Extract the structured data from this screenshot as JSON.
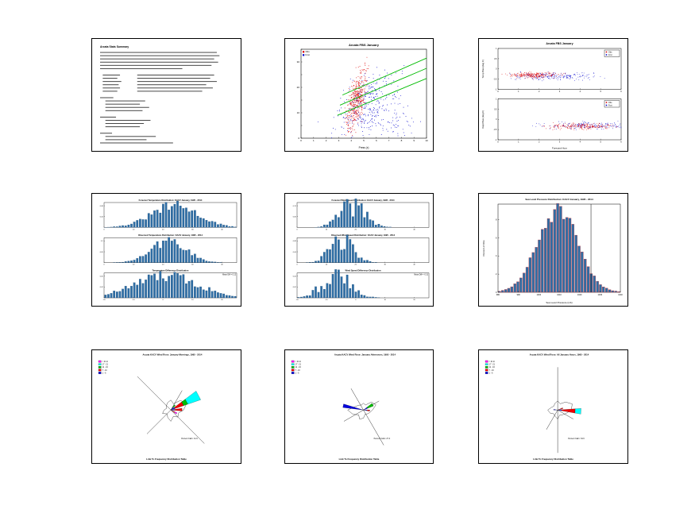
{
  "page": {
    "background": "#ffffff"
  },
  "palette": {
    "bar_fill": "#2e6da4",
    "bar_edge": "#123a5c",
    "diff_bar_edge": "#cc2222",
    "obs_red": "#dd0000",
    "fcst_blue": "#0000cc",
    "ref_green": "#00bb00"
  },
  "chart_data": [
    {
      "type": "text_page",
      "title": "Arcata Stats Summary",
      "lines": [
        [
          [
            0,
            88
          ]
        ],
        [
          [
            0,
            90
          ]
        ],
        [
          [
            0,
            86
          ]
        ],
        [
          [
            0,
            89
          ]
        ],
        [
          [
            0,
            84
          ]
        ],
        [
          [
            0,
            62
          ]
        ],
        [],
        [
          [
            2,
            13
          ],
          [
            28,
            58
          ]
        ],
        [
          [
            2,
            11
          ],
          [
            28,
            55
          ]
        ],
        [
          [
            2,
            14
          ],
          [
            28,
            60
          ]
        ],
        [
          [
            2,
            12
          ],
          [
            28,
            52
          ]
        ],
        [
          [
            2,
            13
          ],
          [
            28,
            57
          ]
        ],
        [
          [
            2,
            11
          ],
          [
            28,
            49
          ]
        ],
        [],
        [
          [
            0,
            10
          ]
        ],
        [
          [
            4,
            30
          ]
        ],
        [
          [
            4,
            26
          ]
        ],
        [
          [
            4,
            33
          ]
        ],
        [
          [
            4,
            28
          ]
        ],
        [],
        [
          [
            0,
            12
          ]
        ],
        [
          [
            4,
            34
          ]
        ],
        [
          [
            4,
            29
          ]
        ],
        [
          [
            4,
            26
          ]
        ],
        [],
        [
          [
            0,
            9
          ]
        ],
        [
          [
            4,
            38
          ]
        ],
        [
          [
            4,
            31
          ]
        ],
        [
          [
            0,
            55
          ]
        ]
      ]
    },
    {
      "type": "scatter",
      "title": "Arcata FBS January",
      "xlabel": "Press (x)",
      "xlim": [
        0,
        10
      ],
      "xtick": 1,
      "ylim": [
        0,
        35
      ],
      "ytick": 5,
      "ylabeltick": 10,
      "legend": {
        "entries": [
          {
            "color": "#dd0000",
            "label": "Obs"
          },
          {
            "color": "#0000cc",
            "label": "Fcst"
          }
        ]
      },
      "clusters": [
        {
          "color": "#0000cc",
          "n": 320,
          "cx": 5.2,
          "cy": 13,
          "sx": 1.25,
          "sy": 5.5,
          "slope": 2.5,
          "seed": 11
        },
        {
          "color": "#0000cc",
          "n": 80,
          "cx": 7.0,
          "cy": 6.5,
          "sx": 1.4,
          "sy": 2.8,
          "slope": 0,
          "seed": 12
        },
        {
          "color": "#dd0000",
          "n": 420,
          "cx": 4.4,
          "cy": 15,
          "sx": 0.38,
          "sy": 4.5,
          "slope": 9,
          "seed": 13
        }
      ],
      "lines": [
        {
          "color": "#00bb00",
          "x1": 2.9,
          "y1": 9,
          "x2": 10,
          "y2": 23.5
        },
        {
          "color": "#00bb00",
          "x1": 3.1,
          "y1": 13,
          "x2": 10,
          "y2": 27.5
        },
        {
          "color": "#00bb00",
          "x1": 3.3,
          "y1": 17,
          "x2": 10,
          "y2": 31.5
        }
      ]
    },
    {
      "type": "scatter2",
      "title": "Arcata FBS January",
      "xlabel": "Forecast Hour",
      "xlim": [
        0,
        6
      ],
      "xtick": 1,
      "subplots": [
        {
          "ylabel": "Temp Bias (deg C)",
          "ylim": [
            -1,
            1
          ],
          "legend": {
            "entries": [
              {
                "color": "#dd0000",
                "label": "Obs"
              },
              {
                "color": "#0000cc",
                "label": "Fcst"
              }
            ]
          },
          "clusters": [
            {
              "color": "#0000cc",
              "n": 220,
              "cx": 2.7,
              "cy": -0.35,
              "sx": 1.0,
              "sy": 0.09,
              "seed": 22
            },
            {
              "color": "#dd0000",
              "n": 240,
              "cx": 1.7,
              "cy": -0.3,
              "sx": 0.55,
              "sy": 0.07,
              "seed": 21
            }
          ]
        },
        {
          "ylabel": "Dwpt Bias (deg C)",
          "ylim": [
            -1,
            1
          ],
          "legend": {
            "entries": [
              {
                "color": "#dd0000",
                "label": "Obs"
              },
              {
                "color": "#0000cc",
                "label": "Fcst"
              }
            ]
          },
          "clusters": [
            {
              "color": "#0000cc",
              "n": 200,
              "cx": 4.5,
              "cy": -0.3,
              "sx": 1.05,
              "sy": 0.09,
              "seed": 23
            },
            {
              "color": "#dd0000",
              "n": 220,
              "cx": 4.1,
              "cy": -0.35,
              "sx": 0.8,
              "sy": 0.07,
              "seed": 24
            }
          ]
        }
      ]
    },
    {
      "type": "hist_stack",
      "subplots": [
        {
          "title": "Forecast Temperature Distribution: KACV January, 1995 - 2014",
          "bins": 46,
          "center": 24,
          "sigma": 8,
          "peak": 0.08,
          "noise": 0.25,
          "seed": 31,
          "xlim": [
            0,
            45
          ],
          "xtick": 10
        },
        {
          "title": "Observed Temperature Distribution: KACV January, 1995 - 2014",
          "bins": 46,
          "center": 22,
          "sigma": 6,
          "peak": 0.1,
          "noise": 0.25,
          "seed": 32,
          "xlim": [
            0,
            45
          ],
          "xtick": 10
        },
        {
          "title": "Temperature Difference Distribution",
          "bins": 46,
          "center": 21,
          "sigma": 11,
          "peak": 0.045,
          "noise": 0.3,
          "seed": 33,
          "xlim": [
            -20,
            25
          ],
          "xtick": 10,
          "note": "Mean Diff = 0.12"
        }
      ]
    },
    {
      "type": "hist_stack",
      "subplots": [
        {
          "title": "Forecast Wind Speed Distribution: KACV January, 1995 - 2014",
          "bins": 46,
          "center": 19,
          "sigma": 4.5,
          "peak": 0.12,
          "noise": 0.5,
          "seed": 41,
          "xlim": [
            0,
            45
          ],
          "xtick": 10
        },
        {
          "title": "Observed Wind Speed Distribution: KACV January, 1995 - 2014",
          "bins": 46,
          "center": 15,
          "sigma": 4,
          "peak": 0.075,
          "noise": 0.5,
          "seed": 42,
          "xlim": [
            0,
            45
          ],
          "xtick": 10
        },
        {
          "title": "Wind Speed Difference Distribution",
          "bins": 46,
          "center": 13,
          "sigma": 5,
          "peak": 0.04,
          "noise": 0.5,
          "seed": 43,
          "xlim": [
            -20,
            25
          ],
          "xtick": 10,
          "note": "Mean Diff = -0.31"
        }
      ]
    },
    {
      "type": "hist",
      "title": "Sea Level Pressure Distribution: KACV January, 1995 - 2014",
      "xlabel": "Sea Level Pressure (mb)",
      "ylabel": "Percent of Obs",
      "bins": 40,
      "center": 19,
      "sigma": 6.5,
      "peak": 9,
      "noise": 0.12,
      "seed": 51,
      "xlim": [
        980,
        1040
      ],
      "xtick": 10,
      "ytick": 2,
      "refline_frac": 0.76
    },
    {
      "type": "windrose",
      "title": "Arcata KACV Wind Rose: January Mornings, 1995 - 2014",
      "legend": [
        {
          "color": "#ff00ff",
          "label": "> 21 kt"
        },
        {
          "color": "#00ffff",
          "label": "17 - 21"
        },
        {
          "color": "#00bb00",
          "label": "11 - 16"
        },
        {
          "color": "#ee0000",
          "label": "7 - 10"
        },
        {
          "color": "#0000dd",
          "label": "1 - 6"
        }
      ],
      "star": [
        0.22,
        0.15,
        0.3,
        0.38,
        0.28,
        0.18,
        0.22,
        0.15,
        0.25,
        0.18,
        0.12,
        0.2,
        0.15,
        0.1,
        0.14,
        0.18
      ],
      "lines": [
        {
          "dir": 135,
          "len": 1.05
        },
        {
          "dir": 315,
          "len": 1.05
        },
        {
          "dir": 225,
          "len": 0.75
        },
        {
          "dir": 30,
          "len": 0.5
        }
      ],
      "petals": [
        {
          "dir": 62,
          "hw": 9,
          "segs": [
            {
              "color": "#0000dd",
              "len": 0.1
            },
            {
              "color": "#ee0000",
              "len": 0.2
            },
            {
              "color": "#00bb00",
              "len": 0.1
            },
            {
              "color": "#00ffff",
              "len": 0.3
            }
          ]
        },
        {
          "dir": 88,
          "hw": 7,
          "segs": [
            {
              "color": "#0000dd",
              "len": 0.08
            },
            {
              "color": "#ee0000",
              "len": 0.17
            }
          ]
        },
        {
          "dir": 40,
          "hw": 6,
          "segs": [
            {
              "color": "#0000dd",
              "len": 0.07
            },
            {
              "color": "#00bb00",
              "len": 0.07
            }
          ]
        },
        {
          "dir": 120,
          "hw": 6,
          "segs": [
            {
              "color": "#ee0000",
              "len": 0.1
            },
            {
              "color": "#ff00ff",
              "len": 0.05
            }
          ]
        }
      ],
      "note": "Percent Calm: 41.9",
      "bottom_label": "Link To Frequency Distribution Table"
    },
    {
      "type": "windrose",
      "title": "Arcata KACV Wind Rose: January Afternoons, 1995 - 2014",
      "legend": [
        {
          "color": "#ff00ff",
          "label": "> 21 kt"
        },
        {
          "color": "#00ffff",
          "label": "17 - 21"
        },
        {
          "color": "#00bb00",
          "label": "11 - 16"
        },
        {
          "color": "#ee0000",
          "label": "7 - 10"
        },
        {
          "color": "#0000dd",
          "label": "1 - 6"
        }
      ],
      "star": [
        0.15,
        0.12,
        0.25,
        0.3,
        0.2,
        0.15,
        0.12,
        0.1,
        0.18,
        0.22,
        0.15,
        0.25,
        0.35,
        0.2,
        0.15,
        0.12
      ],
      "lines": [
        {
          "dir": 150,
          "len": 0.9
        },
        {
          "dir": 330,
          "len": 0.55
        },
        {
          "dir": 240,
          "len": 0.5
        },
        {
          "dir": 60,
          "len": 0.4
        }
      ],
      "petals": [
        {
          "dir": 282,
          "hw": 5,
          "segs": [
            {
              "color": "#0000dd",
              "len": 0.46
            }
          ]
        },
        {
          "dir": 60,
          "hw": 8,
          "segs": [
            {
              "color": "#0000dd",
              "len": 0.1
            },
            {
              "color": "#00bb00",
              "len": 0.14
            }
          ]
        },
        {
          "dir": 95,
          "hw": 6,
          "segs": [
            {
              "color": "#0000dd",
              "len": 0.08
            },
            {
              "color": "#ee0000",
              "len": 0.06
            }
          ]
        }
      ],
      "note": "Percent Calm: 27.4",
      "bottom_label": "Link To Frequency Distribution Table"
    },
    {
      "type": "windrose",
      "title": "Arcata KACV Wind Rose: All January Hours, 1995 - 2014",
      "legend": [
        {
          "color": "#ff00ff",
          "label": "> 21 kt"
        },
        {
          "color": "#00ffff",
          "label": "17 - 21"
        },
        {
          "color": "#00bb00",
          "label": "11 - 16"
        },
        {
          "color": "#ee0000",
          "label": "7 - 10"
        },
        {
          "color": "#0000dd",
          "label": "1 - 6"
        }
      ],
      "star": [
        0.2,
        0.15,
        0.25,
        0.35,
        0.3,
        0.2,
        0.15,
        0.12,
        0.2,
        0.15,
        0.12,
        0.18,
        0.22,
        0.15,
        0.12,
        0.16
      ],
      "lines": [
        {
          "dir": 0,
          "len": 0.95
        },
        {
          "dir": 180,
          "len": 0.95
        },
        {
          "dir": 210,
          "len": 0.5
        },
        {
          "dir": 120,
          "len": 0.4
        }
      ],
      "petals": [
        {
          "dir": 93,
          "hw": 7,
          "segs": [
            {
              "color": "#0000dd",
              "len": 0.09
            },
            {
              "color": "#ee0000",
              "len": 0.3
            },
            {
              "color": "#00ffff",
              "len": 0.13
            }
          ]
        },
        {
          "dir": 70,
          "hw": 5,
          "segs": [
            {
              "color": "#ee0000",
              "len": 0.12
            }
          ]
        },
        {
          "dir": 275,
          "hw": 5,
          "segs": [
            {
              "color": "#0000dd",
              "len": 0.09
            }
          ]
        }
      ],
      "note": "Percent Calm: 34.6",
      "bottom_label": "Link To Frequency Distribution Table"
    }
  ]
}
